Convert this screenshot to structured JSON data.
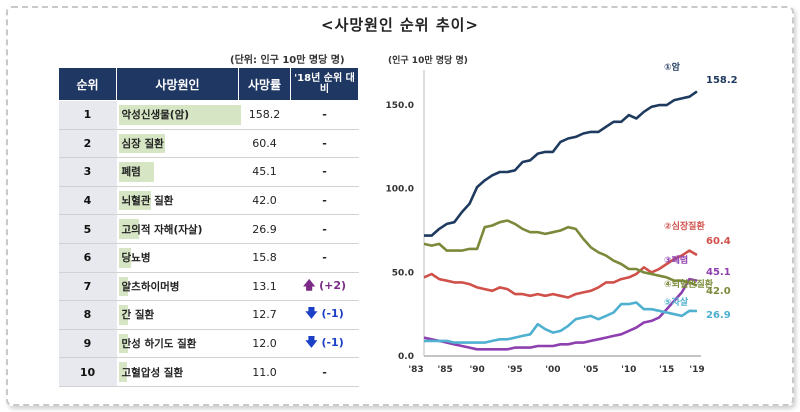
{
  "title": "<사망원인 순위 추이>",
  "unit_note": "(단위: 인구 10만 명당 명)",
  "table": {
    "headers": [
      "순위",
      "사망원인",
      "사망률",
      "'18년 순위 대비"
    ],
    "max_rate": 158.2,
    "rows": [
      {
        "rank": "1",
        "cause": "악성신생물(암)",
        "rate": "158.2",
        "rate_value": 158.2,
        "change": "-",
        "direction": "none"
      },
      {
        "rank": "2",
        "cause": "심장 질환",
        "rate": "60.4",
        "rate_value": 60.4,
        "change": "-",
        "direction": "none"
      },
      {
        "rank": "3",
        "cause": "폐렴",
        "rate": "45.1",
        "rate_value": 45.1,
        "change": "-",
        "direction": "none"
      },
      {
        "rank": "4",
        "cause": "뇌혈관 질환",
        "rate": "42.0",
        "rate_value": 42.0,
        "change": "-",
        "direction": "none"
      },
      {
        "rank": "5",
        "cause": "고의적 자해(자살)",
        "rate": "26.9",
        "rate_value": 26.9,
        "change": "-",
        "direction": "none"
      },
      {
        "rank": "6",
        "cause": "당뇨병",
        "rate": "15.8",
        "rate_value": 15.8,
        "change": "-",
        "direction": "none"
      },
      {
        "rank": "7",
        "cause": "알츠하이머병",
        "rate": "13.1",
        "rate_value": 13.1,
        "change": "(+2)",
        "direction": "up"
      },
      {
        "rank": "8",
        "cause": "간 질환",
        "rate": "12.7",
        "rate_value": 12.7,
        "change": "(-1)",
        "direction": "down"
      },
      {
        "rank": "9",
        "cause": "만성 하기도 질환",
        "rate": "12.0",
        "rate_value": 12.0,
        "change": "(-1)",
        "direction": "down"
      },
      {
        "rank": "10",
        "cause": "고혈압성 질환",
        "rate": "11.0",
        "rate_value": 11.0,
        "change": "-",
        "direction": "none"
      }
    ]
  },
  "chart_data": {
    "type": "line",
    "ylabel": "(인구 10만 명당 명)",
    "xlim": [
      1983,
      2019
    ],
    "ylim": [
      0,
      165
    ],
    "yticks": [
      0.0,
      50.0,
      100.0,
      150.0
    ],
    "ytick_labels": [
      "0.0",
      "50.0",
      "100.0",
      "150.0"
    ],
    "xticks": [
      1983,
      1985,
      1990,
      1995,
      2000,
      2005,
      2010,
      2015,
      2019
    ],
    "xtick_labels": [
      "'83",
      "'85",
      "'90",
      "'95",
      "'00",
      "'05",
      "'10",
      "'15",
      "'19"
    ],
    "series": [
      {
        "name": "①암",
        "value_label": "158.2",
        "color": "#1f3a5f",
        "x": [
          1983,
          1984,
          1985,
          1986,
          1987,
          1988,
          1989,
          1990,
          1991,
          1992,
          1993,
          1994,
          1995,
          1996,
          1997,
          1998,
          1999,
          2000,
          2001,
          2002,
          2003,
          2004,
          2005,
          2006,
          2007,
          2008,
          2009,
          2010,
          2011,
          2012,
          2013,
          2014,
          2015,
          2016,
          2017,
          2018,
          2019
        ],
        "y": [
          72,
          72,
          76,
          79,
          80,
          86,
          91,
          101,
          105,
          108,
          110,
          110,
          111,
          116,
          117,
          121,
          122,
          122,
          128,
          130,
          131,
          133,
          134,
          134,
          137,
          140,
          140,
          144,
          142,
          146,
          149,
          150,
          150,
          153,
          154,
          155,
          158.2
        ]
      },
      {
        "name": "②심장질환",
        "value_label": "60.4",
        "color": "#d0504a",
        "x": [
          1983,
          1984,
          1985,
          1986,
          1987,
          1988,
          1989,
          1990,
          1991,
          1992,
          1993,
          1994,
          1995,
          1996,
          1997,
          1998,
          1999,
          2000,
          2001,
          2002,
          2003,
          2004,
          2005,
          2006,
          2007,
          2008,
          2009,
          2010,
          2011,
          2012,
          2013,
          2014,
          2015,
          2016,
          2017,
          2018,
          2019
        ],
        "y": [
          47,
          49,
          46,
          45,
          44,
          44,
          43,
          41,
          40,
          39,
          41,
          40,
          37,
          37,
          36,
          37,
          36,
          37,
          36,
          35,
          37,
          38,
          39,
          41,
          44,
          44,
          46,
          47,
          49,
          53,
          50,
          52,
          55,
          58,
          60,
          63,
          60.4
        ]
      },
      {
        "name": "③폐렴",
        "value_label": "45.1",
        "color": "#8e3fb0",
        "x": [
          1983,
          1984,
          1985,
          1986,
          1987,
          1988,
          1989,
          1990,
          1991,
          1992,
          1993,
          1994,
          1995,
          1996,
          1997,
          1998,
          1999,
          2000,
          2001,
          2002,
          2003,
          2004,
          2005,
          2006,
          2007,
          2008,
          2009,
          2010,
          2011,
          2012,
          2013,
          2014,
          2015,
          2016,
          2017,
          2018,
          2019
        ],
        "y": [
          11,
          10,
          9,
          8,
          7,
          6,
          5,
          4,
          4,
          4,
          4,
          4,
          5,
          5,
          5,
          6,
          6,
          6,
          7,
          7,
          8,
          8,
          9,
          10,
          11,
          12,
          13,
          15,
          17,
          20,
          21,
          23,
          28,
          33,
          38,
          46,
          45.1
        ]
      },
      {
        "name": "④뇌혈관질환",
        "value_label": "42.0",
        "color": "#7a8a3a",
        "x": [
          1983,
          1984,
          1985,
          1986,
          1987,
          1988,
          1989,
          1990,
          1991,
          1992,
          1993,
          1994,
          1995,
          1996,
          1997,
          1998,
          1999,
          2000,
          2001,
          2002,
          2003,
          2004,
          2005,
          2006,
          2007,
          2008,
          2009,
          2010,
          2011,
          2012,
          2013,
          2014,
          2015,
          2016,
          2017,
          2018,
          2019
        ],
        "y": [
          67,
          66,
          67,
          63,
          63,
          63,
          64,
          64,
          77,
          78,
          80,
          81,
          79,
          76,
          74,
          74,
          73,
          74,
          75,
          77,
          76,
          70,
          65,
          62,
          60,
          57,
          55,
          52,
          52,
          50,
          49,
          48,
          47,
          45,
          45,
          44,
          42.0
        ]
      },
      {
        "name": "⑤자살",
        "value_label": "26.9",
        "color": "#4fb0d0",
        "x": [
          1983,
          1984,
          1985,
          1986,
          1987,
          1988,
          1989,
          1990,
          1991,
          1992,
          1993,
          1994,
          1995,
          1996,
          1997,
          1998,
          1999,
          2000,
          2001,
          2002,
          2003,
          2004,
          2005,
          2006,
          2007,
          2008,
          2009,
          2010,
          2011,
          2012,
          2013,
          2014,
          2015,
          2016,
          2017,
          2018,
          2019
        ],
        "y": [
          9,
          9,
          9,
          9,
          8,
          8,
          8,
          8,
          8,
          9,
          10,
          10,
          11,
          12,
          13,
          19,
          16,
          14,
          15,
          18,
          22,
          23,
          24,
          22,
          24,
          26,
          31,
          31,
          32,
          28,
          28,
          27,
          26,
          25,
          24,
          27,
          26.9
        ]
      }
    ]
  }
}
